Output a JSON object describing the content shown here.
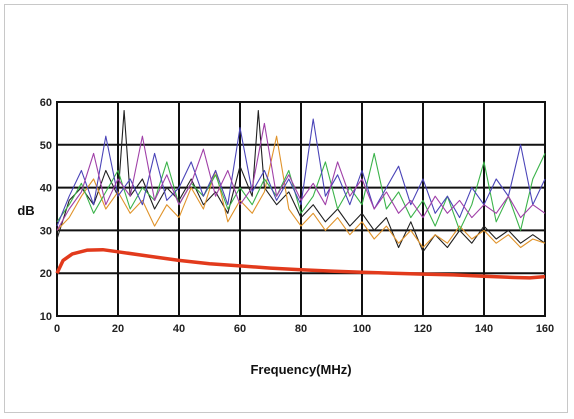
{
  "chart_data": {
    "type": "line",
    "xlabel": "Frequency(MHz)",
    "ylabel": "dB",
    "xlim": [
      0,
      160
    ],
    "ylim": [
      10,
      60
    ],
    "xticks": [
      0,
      20,
      40,
      60,
      80,
      100,
      120,
      140,
      160
    ],
    "yticks": [
      10,
      20,
      30,
      40,
      50,
      60
    ],
    "grid": true,
    "series": [
      {
        "color": "#e23a1c",
        "x": [
          0,
          2,
          5,
          10,
          15,
          20,
          30,
          40,
          50,
          60,
          70,
          80,
          90,
          100,
          110,
          120,
          130,
          140,
          150,
          155,
          160
        ],
        "y": [
          20,
          23,
          24.5,
          25.4,
          25.5,
          25,
          24,
          23,
          22.2,
          21.7,
          21.2,
          20.8,
          20.5,
          20.2,
          20,
          19.8,
          19.6,
          19.3,
          19,
          18.9,
          19.2
        ]
      },
      {
        "color": "#202020",
        "x": [
          0,
          4,
          8,
          12,
          16,
          20,
          22,
          24,
          28,
          32,
          36,
          40,
          44,
          48,
          52,
          56,
          60,
          64,
          66,
          68,
          72,
          76,
          80,
          84,
          88,
          92,
          96,
          100,
          104,
          108,
          112,
          116,
          120,
          124,
          128,
          132,
          136,
          140,
          144,
          148,
          152,
          156,
          160
        ],
        "y": [
          28,
          37,
          40,
          36,
          44,
          38,
          58,
          38,
          42,
          35,
          40,
          37,
          42,
          36,
          39,
          34,
          45,
          38,
          58,
          40,
          36,
          39,
          33,
          36,
          32,
          35,
          31,
          34,
          30,
          33,
          26,
          32,
          25,
          29,
          26,
          30,
          27,
          31,
          28,
          30,
          27,
          29,
          27
        ]
      },
      {
        "color": "#e0932a",
        "x": [
          0,
          4,
          8,
          12,
          16,
          20,
          24,
          28,
          32,
          36,
          40,
          44,
          48,
          52,
          56,
          60,
          64,
          68,
          72,
          76,
          80,
          84,
          88,
          92,
          96,
          100,
          104,
          108,
          112,
          116,
          120,
          124,
          128,
          132,
          136,
          140,
          144,
          148,
          152,
          156,
          160
        ],
        "y": [
          30,
          33,
          38,
          42,
          35,
          39,
          34,
          37,
          31,
          36,
          33,
          40,
          35,
          44,
          32,
          37,
          34,
          39,
          52,
          35,
          31,
          34,
          30,
          33,
          29,
          32,
          28,
          31,
          27,
          30,
          26,
          29,
          27,
          31,
          28,
          30,
          27,
          29,
          26,
          28,
          27
        ]
      },
      {
        "color": "#3bb34a",
        "x": [
          0,
          4,
          8,
          12,
          16,
          20,
          24,
          28,
          32,
          36,
          40,
          44,
          48,
          52,
          56,
          60,
          64,
          68,
          72,
          76,
          80,
          84,
          88,
          92,
          96,
          100,
          104,
          108,
          112,
          116,
          120,
          124,
          128,
          132,
          136,
          140,
          144,
          148,
          152,
          156,
          160
        ],
        "y": [
          32,
          36,
          41,
          34,
          39,
          44,
          35,
          40,
          37,
          46,
          36,
          41,
          38,
          43,
          35,
          40,
          36,
          42,
          38,
          44,
          34,
          38,
          46,
          35,
          40,
          36,
          48,
          35,
          39,
          33,
          37,
          31,
          38,
          30,
          36,
          46,
          32,
          38,
          30,
          42,
          48
        ]
      },
      {
        "color": "#4a44b8",
        "x": [
          0,
          4,
          8,
          12,
          16,
          20,
          24,
          28,
          32,
          36,
          40,
          44,
          48,
          52,
          56,
          60,
          64,
          68,
          72,
          76,
          80,
          84,
          88,
          92,
          96,
          100,
          104,
          108,
          112,
          116,
          120,
          124,
          128,
          132,
          136,
          140,
          144,
          148,
          152,
          156,
          160
        ],
        "y": [
          31,
          38,
          44,
          36,
          52,
          38,
          42,
          36,
          48,
          37,
          40,
          46,
          38,
          44,
          36,
          54,
          39,
          44,
          37,
          42,
          36,
          56,
          38,
          43,
          36,
          44,
          35,
          40,
          45,
          36,
          42,
          34,
          38,
          33,
          40,
          36,
          42,
          38,
          50,
          36,
          42
        ]
      },
      {
        "color": "#a040a8",
        "x": [
          0,
          4,
          8,
          12,
          16,
          20,
          24,
          28,
          32,
          36,
          40,
          44,
          48,
          52,
          56,
          60,
          64,
          68,
          72,
          76,
          80,
          84,
          88,
          92,
          96,
          100,
          104,
          108,
          112,
          116,
          120,
          124,
          128,
          132,
          136,
          140,
          144,
          148,
          152,
          156,
          160
        ],
        "y": [
          30,
          35,
          39,
          48,
          36,
          42,
          38,
          52,
          37,
          43,
          36,
          41,
          49,
          38,
          44,
          36,
          40,
          55,
          38,
          43,
          37,
          41,
          36,
          46,
          38,
          42,
          35,
          39,
          34,
          37,
          33,
          38,
          34,
          37,
          33,
          36,
          34,
          38,
          33,
          36,
          34
        ]
      }
    ]
  }
}
